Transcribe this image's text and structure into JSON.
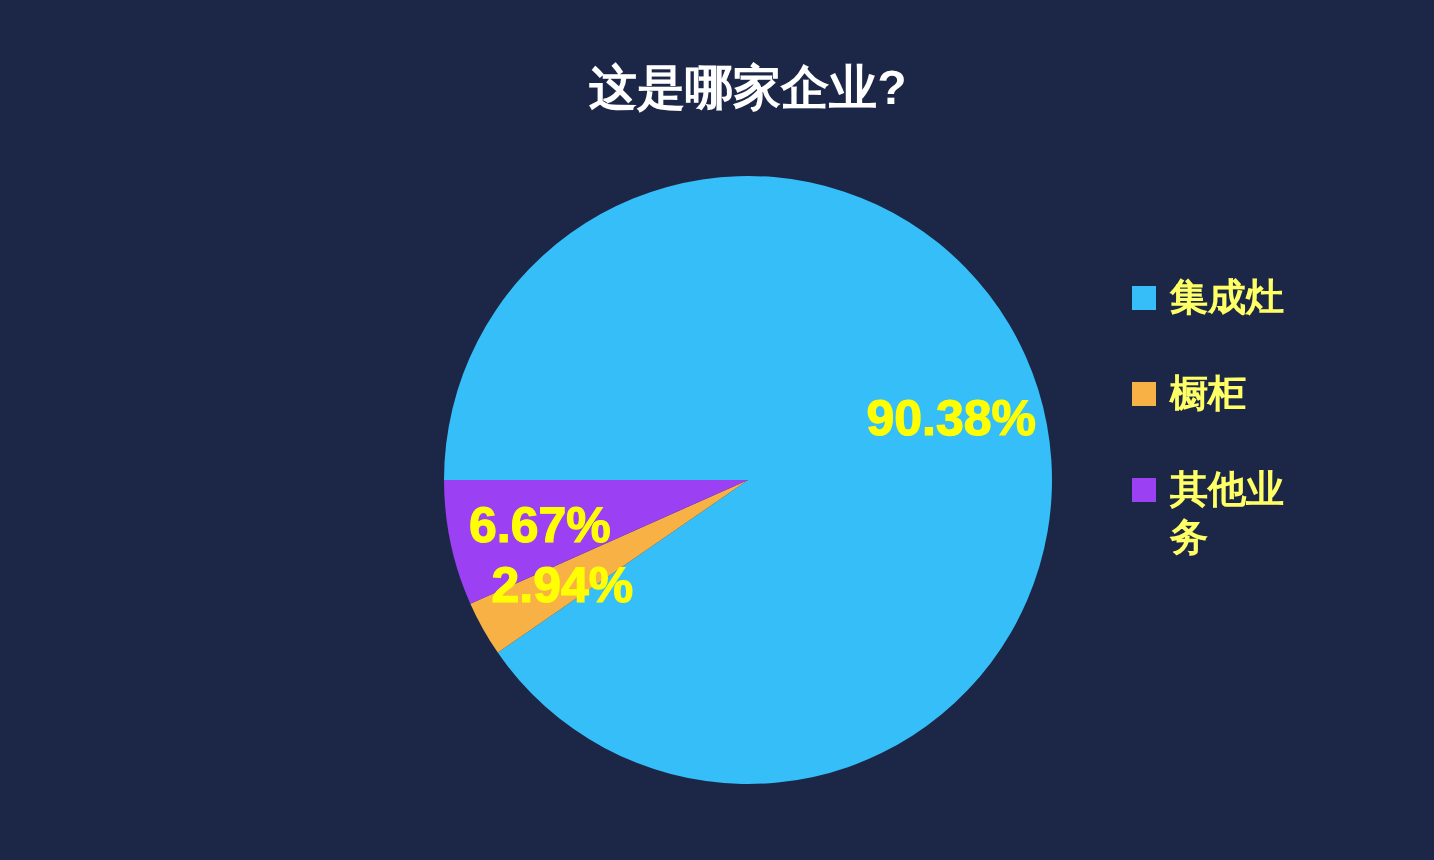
{
  "chart_data": {
    "type": "pie",
    "title": "这是哪家企业?",
    "categories": [
      "集成灶",
      "橱柜",
      "其他业务"
    ],
    "values": [
      90.38,
      2.94,
      6.67
    ],
    "colors": [
      "#36bef9",
      "#f8b144",
      "#9b40f2"
    ],
    "value_labels": [
      "90.38%",
      "2.94%",
      "6.67%"
    ],
    "legend": "right"
  }
}
